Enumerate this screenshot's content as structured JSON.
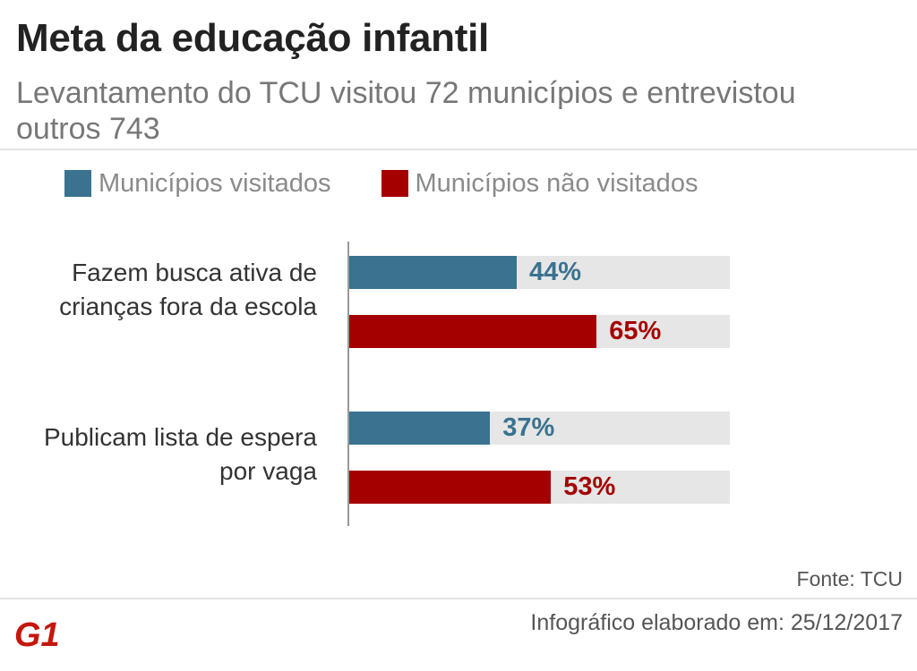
{
  "title": "Meta da educação infantil",
  "subtitle": "Levantamento do TCU visitou 72 municípios e entrevistou outros 743",
  "source": "Fonte: TCU",
  "footer": "Infográfico elaborado em: 25/12/2017",
  "logo_text": "G1",
  "colors": {
    "visitados": "#3a7290",
    "nao_visitados": "#a50000",
    "track": "#e6e6e6",
    "logo": "#c4170c"
  },
  "chart_data": {
    "type": "bar",
    "orientation": "horizontal",
    "categories": [
      "Fazem busca ativa de crianças fora da escola",
      "Publicam lista de espera por vaga"
    ],
    "series": [
      {
        "name": "Municípios visitados",
        "values": [
          44,
          37
        ],
        "labels": [
          "44%",
          "37%"
        ]
      },
      {
        "name": "Municípios não visitados",
        "values": [
          65,
          53
        ],
        "labels": [
          "65%",
          "53%"
        ]
      }
    ],
    "unit": "%",
    "xlim": [
      0,
      100
    ],
    "legend": "top",
    "grid": false
  }
}
